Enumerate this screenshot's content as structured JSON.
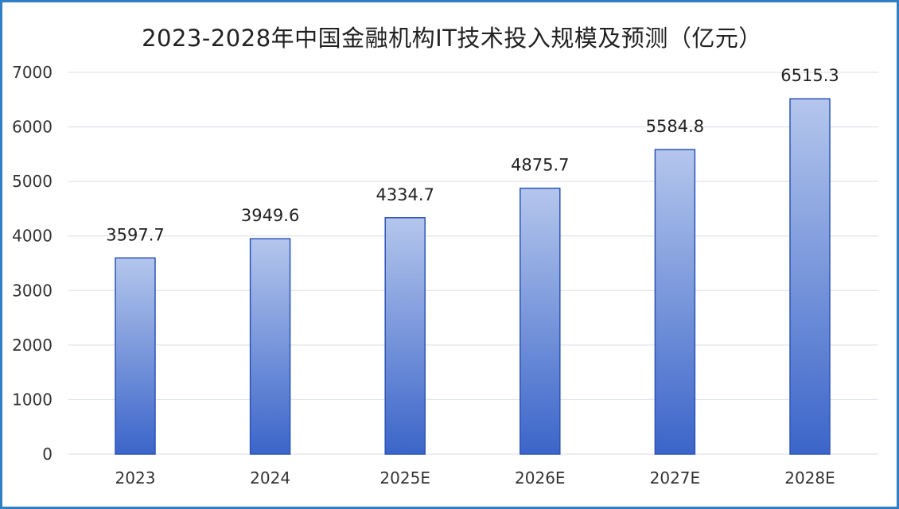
{
  "chart_data": {
    "type": "bar",
    "title": "2023-2028年中国金融机构IT技术投入规模及预测（亿元）",
    "categories": [
      "2023",
      "2024",
      "2025E",
      "2026E",
      "2027E",
      "2028E"
    ],
    "values": [
      3597.7,
      3949.6,
      4334.7,
      4875.7,
      5584.8,
      6515.3
    ],
    "value_labels": [
      "3597.7",
      "3949.6",
      "4334.7",
      "4875.7",
      "5584.8",
      "6515.3"
    ],
    "ylim": [
      0,
      7000
    ],
    "yticks": [
      0,
      1000,
      2000,
      3000,
      4000,
      5000,
      6000,
      7000
    ],
    "xlabel": "",
    "ylabel": "",
    "grid": true,
    "legend": "none",
    "colors": {
      "bar_top": "#b4c6ec",
      "bar_bottom": "#3b65c9",
      "bar_edge": "#2c54b8",
      "grid": "#d9dde6",
      "frame": "#2f7fc4"
    }
  }
}
